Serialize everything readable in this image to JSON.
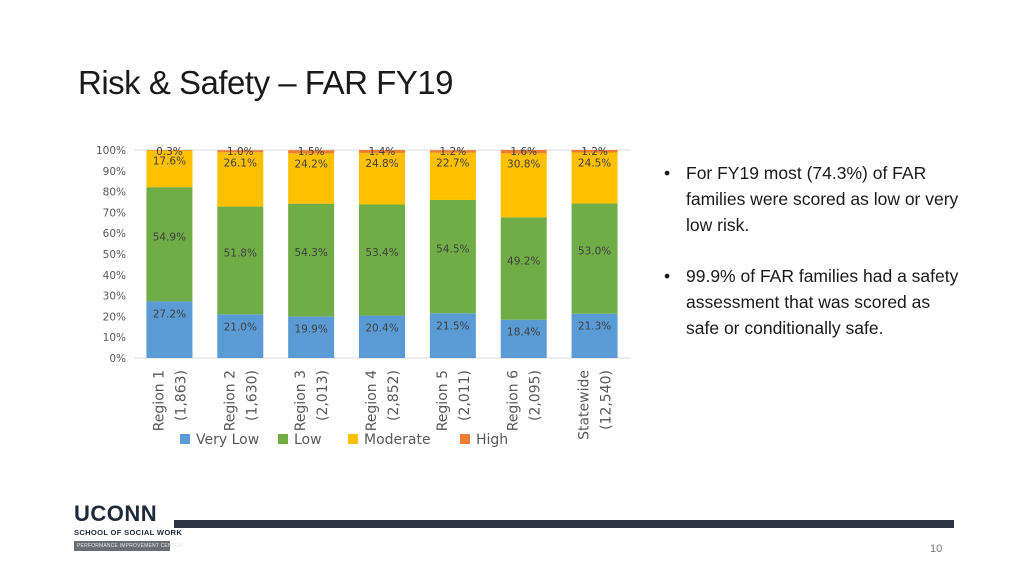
{
  "slide": {
    "title": "Risk & Safety – FAR FY19",
    "page_number": "10"
  },
  "bullets": [
    "For FY19 most (74.3%) of FAR families were scored as low or very low risk.",
    "99.9% of FAR families had a safety assessment that was scored as safe or conditionally safe."
  ],
  "logo": {
    "name": "UCONN",
    "school": "SCHOOL OF SOCIAL WORK",
    "tagline": "PERFORMANCE IMPROVEMENT CENTER"
  },
  "colors": {
    "very_low": "#5b9bd5",
    "low": "#70ad47",
    "moderate": "#ffc000",
    "high": "#ed7d31",
    "footer_bar": "#2b3440"
  },
  "chart_data": {
    "type": "bar",
    "stacked": true,
    "percent": true,
    "categories": [
      {
        "line1": "Region 1",
        "line2": "(1,863)"
      },
      {
        "line1": "Region 2",
        "line2": "(1,630)"
      },
      {
        "line1": "Region 3",
        "line2": "(2,013)"
      },
      {
        "line1": "Region 4",
        "line2": "(2,852)"
      },
      {
        "line1": "Region 5",
        "line2": "(2,011)"
      },
      {
        "line1": "Region 6",
        "line2": "(2,095)"
      },
      {
        "line1": "Statewide",
        "line2": "(12,540)"
      }
    ],
    "series": [
      {
        "name": "Very Low",
        "key": "very_low",
        "values": [
          27.2,
          21.0,
          19.9,
          20.4,
          21.5,
          18.4,
          21.3
        ],
        "labels": [
          "27.2%",
          "21.0%",
          "19.9%",
          "20.4%",
          "21.5%",
          "18.4%",
          "21.3%"
        ]
      },
      {
        "name": "Low",
        "key": "low",
        "values": [
          54.9,
          51.8,
          54.3,
          53.4,
          54.5,
          49.2,
          53.0
        ],
        "labels": [
          "54.9%",
          "51.8%",
          "54.3%",
          "53.4%",
          "54.5%",
          "49.2%",
          "53.0%"
        ]
      },
      {
        "name": "Moderate",
        "key": "moderate",
        "values": [
          17.6,
          26.1,
          24.2,
          24.8,
          22.7,
          30.8,
          24.5
        ],
        "labels": [
          "17.6%",
          "26.1%",
          "24.2%",
          "24.8%",
          "22.7%",
          "30.8%",
          "24.5%"
        ]
      },
      {
        "name": "High",
        "key": "high",
        "values": [
          0.3,
          1.0,
          1.5,
          1.4,
          1.2,
          1.6,
          1.2
        ],
        "labels": [
          "0.3%",
          "1.0%",
          "1.5%",
          "1.4%",
          "1.2%",
          "1.6%",
          "1.2%"
        ]
      }
    ],
    "y_ticks": [
      "0%",
      "10%",
      "20%",
      "30%",
      "40%",
      "50%",
      "60%",
      "70%",
      "80%",
      "90%",
      "100%"
    ],
    "ylim": [
      0,
      100
    ],
    "legend_position": "bottom",
    "title": "",
    "xlabel": "",
    "ylabel": ""
  }
}
